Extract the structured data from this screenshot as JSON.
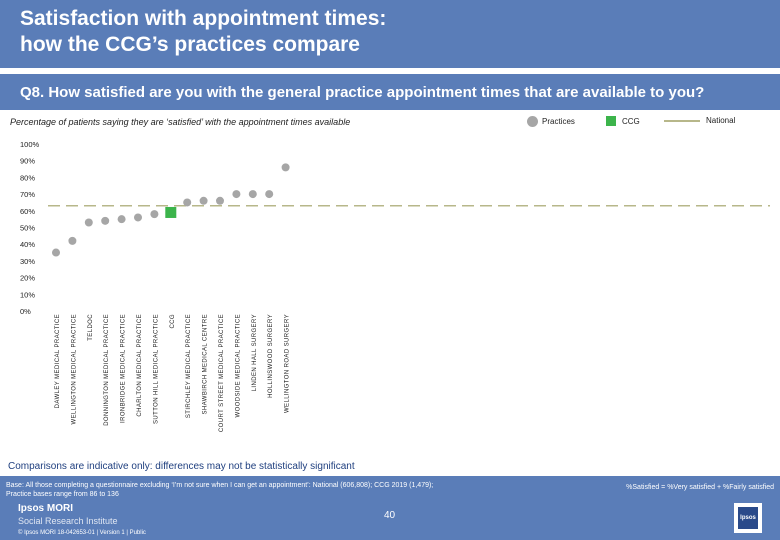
{
  "header": {
    "title_line1": "Satisfaction with appointment times:",
    "title_line2": "how the CCG’s practices compare",
    "question": "Q8. How satisfied are you with the general practice appointment times that are available to you?"
  },
  "chart_subtitle": "Percentage of patients saying they are ‘satisfied’ with the appointment times available",
  "legend": {
    "practices": "Practices",
    "ccg": "CCG",
    "national": "National"
  },
  "colors": {
    "header_band": "#5a7db8",
    "practice_marker": "#a6a6a6",
    "ccg_marker": "#3cb44b",
    "national_line": "#b7b78a",
    "note_text": "#1f3f7f"
  },
  "chart_data": {
    "type": "scatter",
    "categories": [
      "DAWLEY MEDICAL PRACTICE",
      "WELLINGTON MEDICAL PRACTICE",
      "TELDOC",
      "DONNINGTON MEDICAL PRACTICE",
      "IRONBRIDGE MEDICAL PRACTICE",
      "CHARLTON MEDICAL PRACTICE",
      "SUTTON HILL MEDICAL PRACTICE",
      "CCG",
      "STIRCHLEY MEDICAL PRACTICE",
      "SHAWBIRCH MEDICAL CENTRE",
      "COURT STREET MEDICAL PRACTICE",
      "WOODSIDE MEDICAL PRACTICE",
      "LINDEN HALL SURGERY",
      "HOLLINSWOOD SURGERY",
      "WELLINGTON ROAD SURGERY"
    ],
    "values": [
      35,
      42,
      53,
      54,
      55,
      56,
      58,
      59,
      65,
      66,
      66,
      70,
      70,
      70,
      86
    ],
    "ccg_index": 7,
    "national": 63,
    "ylim": [
      0,
      100
    ],
    "yticks": [
      "0%",
      "10%",
      "20%",
      "30%",
      "40%",
      "50%",
      "60%",
      "70%",
      "80%",
      "90%",
      "100%"
    ],
    "grid": false
  },
  "note": "Comparisons are indicative only: differences may not be statistically significant",
  "footer": {
    "base_line1": "Base: All those completing a questionnaire excluding ‘I’m not sure when I can get an appointment’: National (606,808); CCG 2019 (1,479);",
    "base_line2": "Practice bases range from 86 to 136",
    "calc": "%Satisfied = %Very satisfied + %Fairly satisfied",
    "brand1": "Ipsos MORI",
    "brand2": "Social Research Institute",
    "copyright": "© Ipsos MORI     18-042653-01 | Version 1 | Public",
    "page": "40",
    "logo": "Ipsos"
  }
}
